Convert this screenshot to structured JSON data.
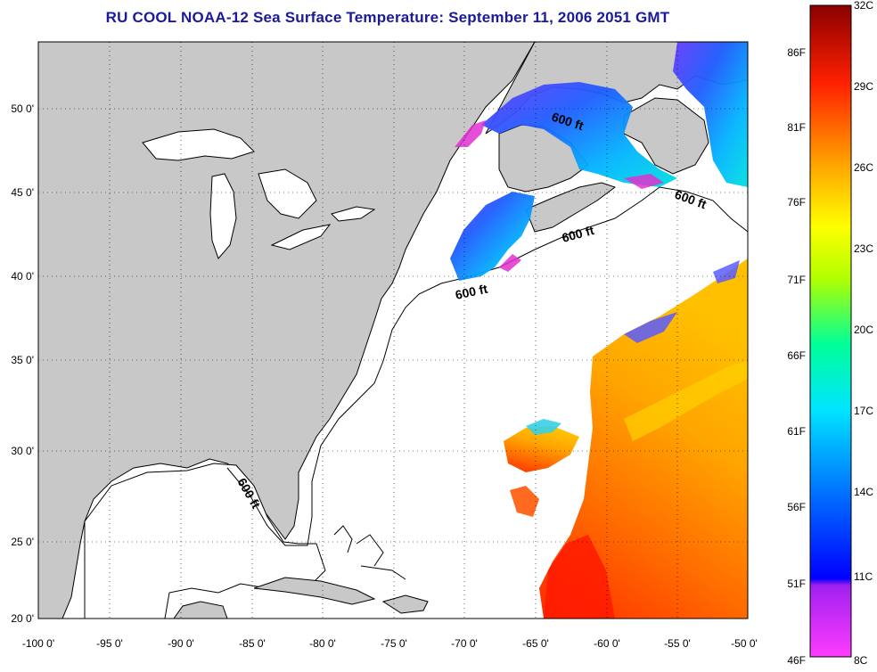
{
  "title": "RU COOL  NOAA-12  Sea Surface Temperature:  September 11, 2006 2051 GMT",
  "axes": {
    "x_ticks": [
      "-100 0'",
      "-95 0'",
      "-90 0'",
      "-85 0'",
      "-80 0'",
      "-75 0'",
      "-70 0'",
      "-65 0'",
      "-60 0'",
      "-55 0'",
      "-50 0'"
    ],
    "y_ticks": [
      "50 0'",
      "45 0'",
      "40 0'",
      "35 0'",
      "30 0'",
      "25 0'",
      "20 0'"
    ]
  },
  "contour_label": "600 ft",
  "colorbar": {
    "fahrenheit": [
      "86F",
      "81F",
      "76F",
      "71F",
      "66F",
      "61F",
      "56F",
      "51F",
      "46F"
    ],
    "celsius": [
      "32C",
      "29C",
      "26C",
      "23C",
      "20C",
      "17C",
      "14C",
      "11C",
      "8C"
    ]
  },
  "colors": {
    "land": "#c8c8c8",
    "ocean": "#ffffff",
    "title": "#1a1a9a"
  }
}
